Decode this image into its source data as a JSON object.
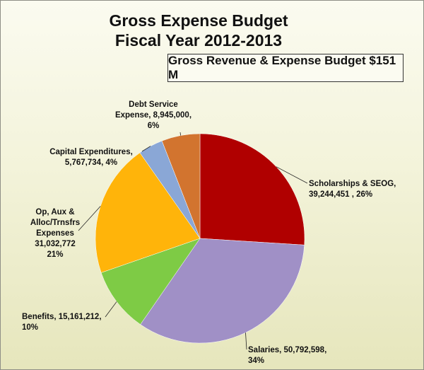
{
  "chart_data": {
    "type": "pie",
    "title": "Gross Expense Budget",
    "subtitle": "Fiscal Year 2012-2013",
    "callout": "Gross Revenue & Expense Budget $151 M",
    "slices": [
      {
        "name": "Scholarships & SEOG",
        "value": 39244451,
        "percent": 26,
        "color": "#b00000",
        "label_lines": [
          "Scholarships & SEOG,",
          "39,244,451 , 26%"
        ]
      },
      {
        "name": "Salaries",
        "value": 50792598,
        "percent": 34,
        "color": "#a090c6",
        "label_lines": [
          "Salaries, 50,792,598,",
          "34%"
        ]
      },
      {
        "name": "Benefits",
        "value": 15161212,
        "percent": 10,
        "color": "#7ecb45",
        "label_lines": [
          "Benefits, 15,161,212,",
          "10%"
        ]
      },
      {
        "name": "Op, Aux & Alloc/Trnsfrs Expenses",
        "value": 31032772,
        "percent": 21,
        "color": "#ffb40a",
        "label_lines": [
          "Op, Aux &",
          "Alloc/Trnsfrs",
          "Expenses",
          "31,032,772",
          "21%"
        ]
      },
      {
        "name": "Capital Expenditures",
        "value": 5767734,
        "percent": 4,
        "color": "#8aa7d6",
        "label_lines": [
          "Capital Expenditures,",
          "5,767,734, 4%"
        ]
      },
      {
        "name": "Debt Service Expense",
        "value": 8945000,
        "percent": 6,
        "color": "#d2742f",
        "label_lines": [
          "Debt Service",
          "Expense, 8,945,000,",
          "6%"
        ]
      }
    ]
  }
}
